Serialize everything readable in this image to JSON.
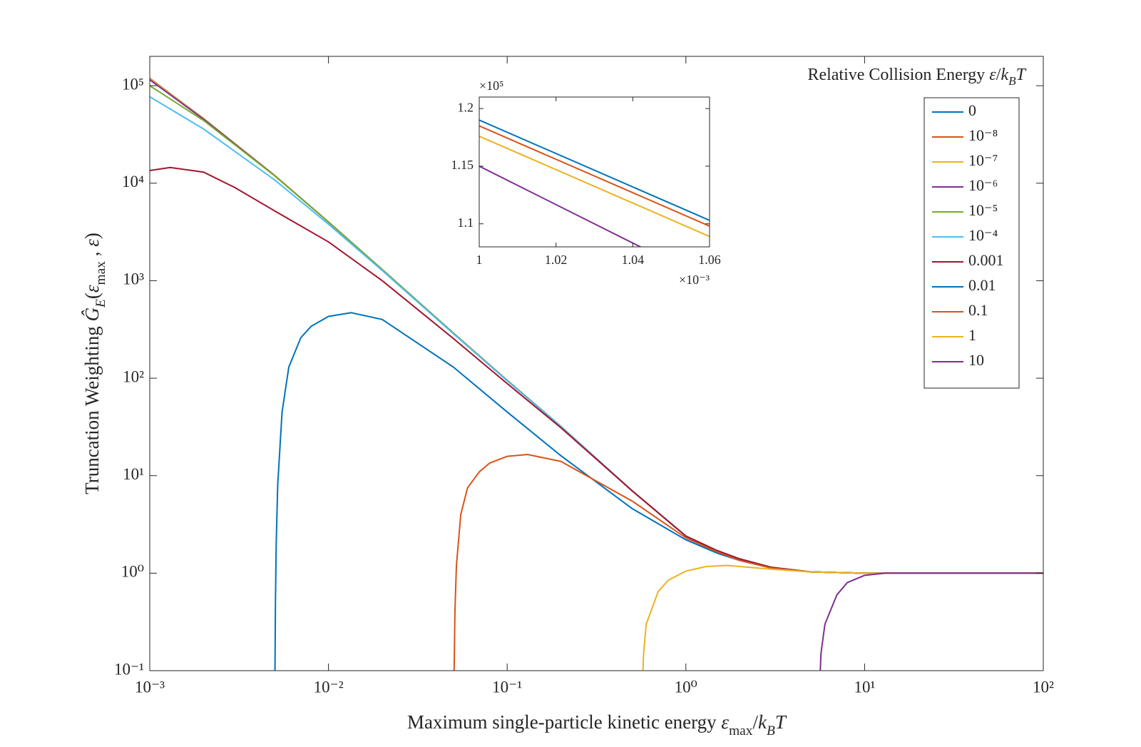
{
  "chart_data": [
    {
      "type": "line",
      "xscale": "log",
      "yscale": "log",
      "xlabel": [
        {
          "t": "Maximum single-particle kinetic energy "
        },
        {
          "t": "ε",
          "s": "i"
        },
        {
          "t": "max",
          "s": "sub"
        },
        {
          "t": "/"
        },
        {
          "t": "k",
          "s": "i"
        },
        {
          "t": "B",
          "s": "isub"
        },
        {
          "t": "T",
          "s": "i"
        }
      ],
      "ylabel": [
        {
          "t": "Truncation Weighting "
        },
        {
          "t": "Ĝ",
          "s": "i"
        },
        {
          "t": "E",
          "s": "isub"
        },
        {
          "t": "("
        },
        {
          "t": "ε",
          "s": "i"
        },
        {
          "t": "max",
          "s": "sub"
        },
        {
          "t": " , "
        },
        {
          "t": "ε",
          "s": "i"
        },
        {
          "t": ")"
        }
      ],
      "legend": "northeast",
      "legend_title": [
        {
          "t": "Relative Collision Energy "
        },
        {
          "t": "ε",
          "s": "i"
        },
        {
          "t": "/"
        },
        {
          "t": "k",
          "s": "i"
        },
        {
          "t": "B",
          "s": "isub"
        },
        {
          "t": "T",
          "s": "i"
        }
      ],
      "xlim": [
        0.001,
        100
      ],
      "ylim": [
        0.1,
        200000
      ],
      "xticks": [
        {
          "value": 0.001,
          "label": "10⁻³"
        },
        {
          "value": 0.01,
          "label": "10⁻²"
        },
        {
          "value": 0.1,
          "label": "10⁻¹"
        },
        {
          "value": 1,
          "label": "10⁰"
        },
        {
          "value": 10,
          "label": "10¹"
        },
        {
          "value": 100,
          "label": "10²"
        }
      ],
      "yticks": [
        {
          "value": 0.1,
          "label": "10⁻¹"
        },
        {
          "value": 1,
          "label": "10⁰"
        },
        {
          "value": 10,
          "label": "10¹"
        },
        {
          "value": 100,
          "label": "10²"
        },
        {
          "value": 1000,
          "label": "10³"
        },
        {
          "value": 10000,
          "label": "10⁴"
        },
        {
          "value": 100000,
          "label": "10⁵"
        }
      ],
      "series": [
        {
          "name": "0",
          "color": "#0072BD",
          "x": [
            0.001,
            0.002,
            0.005,
            0.01,
            0.02,
            0.05,
            0.1,
            0.2,
            0.5,
            1,
            1.5,
            2,
            3,
            5,
            10,
            100
          ],
          "values": [
            119000,
            46000,
            12000,
            4000,
            1300,
            290,
            95,
            32,
            7,
            2.4,
            1.7,
            1.4,
            1.15,
            1.03,
            1,
            1
          ]
        },
        {
          "name": "10⁻⁸",
          "color": "#D95319",
          "x": [
            0.001,
            0.002,
            0.005,
            0.01,
            0.02,
            0.05,
            0.1,
            0.2,
            0.5,
            1,
            1.5,
            2,
            3,
            5,
            10,
            100
          ],
          "values": [
            118500,
            45900,
            12000,
            4000,
            1300,
            290,
            95,
            32,
            7,
            2.4,
            1.7,
            1.4,
            1.15,
            1.03,
            1,
            1
          ]
        },
        {
          "name": "10⁻⁷",
          "color": "#EDB120",
          "x": [
            0.001,
            0.002,
            0.005,
            0.01,
            0.02,
            0.05,
            0.1,
            0.2,
            0.5,
            1,
            1.5,
            2,
            3,
            5,
            10,
            100
          ],
          "values": [
            117600,
            45700,
            12000,
            4000,
            1300,
            290,
            95,
            32,
            7,
            2.4,
            1.7,
            1.4,
            1.15,
            1.03,
            1,
            1
          ]
        },
        {
          "name": "10⁻⁶",
          "color": "#7E2F8E",
          "x": [
            0.001,
            0.002,
            0.005,
            0.01,
            0.02,
            0.05,
            0.1,
            0.2,
            0.5,
            1,
            1.5,
            2,
            3,
            5,
            10,
            100
          ],
          "values": [
            115000,
            45300,
            11950,
            4000,
            1300,
            290,
            95,
            32,
            7,
            2.4,
            1.7,
            1.4,
            1.15,
            1.03,
            1,
            1
          ]
        },
        {
          "name": "10⁻⁵",
          "color": "#77AC30",
          "x": [
            0.001,
            0.002,
            0.005,
            0.01,
            0.02,
            0.05,
            0.1,
            0.2,
            0.5,
            1,
            1.5,
            2,
            3,
            5,
            10,
            100
          ],
          "values": [
            100000,
            44000,
            11900,
            3990,
            1300,
            290,
            95,
            32,
            7,
            2.4,
            1.7,
            1.4,
            1.15,
            1.03,
            1,
            1
          ]
        },
        {
          "name": "10⁻⁴",
          "color": "#4DBEEE",
          "x": [
            0.001,
            0.002,
            0.005,
            0.01,
            0.02,
            0.05,
            0.1,
            0.2,
            0.5,
            1,
            1.5,
            2,
            3,
            5,
            10,
            100
          ],
          "values": [
            77000,
            36000,
            10800,
            3800,
            1270,
            286,
            94,
            32,
            7,
            2.4,
            1.7,
            1.4,
            1.15,
            1.03,
            1,
            1
          ]
        },
        {
          "name": "0.001",
          "color": "#A2142F",
          "x": [
            0.001,
            0.0013,
            0.002,
            0.003,
            0.005,
            0.01,
            0.02,
            0.05,
            0.1,
            0.2,
            0.5,
            1,
            1.5,
            2,
            3,
            5,
            10,
            100
          ],
          "values": [
            13500,
            14500,
            13000,
            9000,
            5200,
            2500,
            1000,
            255,
            88,
            31,
            7,
            2.4,
            1.7,
            1.4,
            1.15,
            1.03,
            1,
            1
          ]
        },
        {
          "name": "0.01",
          "color": "#0072BD",
          "x": [
            0.00502,
            0.00505,
            0.0051,
            0.0052,
            0.0055,
            0.006,
            0.007,
            0.008,
            0.01,
            0.0134,
            0.02,
            0.05,
            0.1,
            0.2,
            0.5,
            1,
            1.5,
            2,
            3,
            5,
            10,
            100
          ],
          "values": [
            0.1,
            0.5,
            2,
            8,
            45,
            130,
            260,
            340,
            430,
            470,
            400,
            130,
            45,
            16,
            4.6,
            2.2,
            1.6,
            1.35,
            1.13,
            1.03,
            1,
            1
          ]
        },
        {
          "name": "0.1",
          "color": "#D95319",
          "x": [
            0.0505,
            0.051,
            0.052,
            0.055,
            0.06,
            0.07,
            0.08,
            0.1,
            0.13,
            0.2,
            0.5,
            1,
            1.5,
            2,
            3,
            5,
            10,
            100
          ],
          "values": [
            0.1,
            0.4,
            1.2,
            4,
            7.5,
            11,
            13.5,
            15.8,
            16.5,
            14,
            5.5,
            2.3,
            1.65,
            1.35,
            1.13,
            1.03,
            1,
            1
          ]
        },
        {
          "name": "1",
          "color": "#EDB120",
          "x": [
            0.575,
            0.58,
            0.6,
            0.7,
            0.8,
            1,
            1.3,
            1.7,
            3,
            5,
            10,
            100
          ],
          "values": [
            0.1,
            0.15,
            0.3,
            0.65,
            0.85,
            1.05,
            1.17,
            1.2,
            1.1,
            1.03,
            1,
            1
          ]
        },
        {
          "name": "10",
          "color": "#7E2F8E",
          "x": [
            5.65,
            5.7,
            6,
            7,
            8,
            10,
            13,
            20,
            100
          ],
          "values": [
            0.1,
            0.15,
            0.3,
            0.6,
            0.8,
            0.95,
            1,
            1,
            1
          ]
        }
      ]
    },
    {
      "type": "line",
      "xscale": "linear",
      "yscale": "linear",
      "xlim": [
        1,
        1.06
      ],
      "ylim": [
        1.08,
        1.21
      ],
      "xticks": [
        1,
        1.02,
        1.04,
        1.06
      ],
      "yticks": [
        1.1,
        1.15,
        1.2
      ],
      "x_multiplier": "×10⁻³",
      "y_multiplier": "×10⁵",
      "series": [
        {
          "color": "#0072BD",
          "x": [
            1,
            1.06
          ],
          "values": [
            1.19,
            1.103
          ]
        },
        {
          "color": "#D95319",
          "x": [
            1,
            1.06
          ],
          "values": [
            1.185,
            1.098
          ]
        },
        {
          "color": "#EDB120",
          "x": [
            1,
            1.06
          ],
          "values": [
            1.176,
            1.089
          ]
        },
        {
          "color": "#7E2F8E",
          "x": [
            1,
            1.06
          ],
          "values": [
            1.15,
            1.05
          ]
        }
      ]
    }
  ]
}
